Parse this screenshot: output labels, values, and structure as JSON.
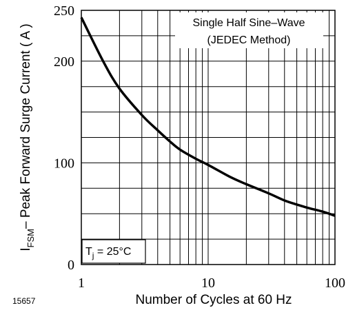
{
  "chart_data": {
    "type": "line",
    "xscale": "log",
    "xlim": [
      1,
      100
    ],
    "ylim": [
      0,
      250
    ],
    "grid": true,
    "x_ticks": [
      "1",
      "10",
      "100"
    ],
    "y_ticks": [
      "0",
      "100",
      "200",
      "250"
    ],
    "xlabel": "Number of Cycles at 60 Hz",
    "ylabel_main": "I",
    "ylabel_sub": "FSM",
    "ylabel_rest": "– Peak Forward Surge Current ( A )",
    "annotation_line1": "Single Half Sine–Wave",
    "annotation_line2": "(JEDEC Method)",
    "temp_label_main": "T",
    "temp_label_sub": "j",
    "temp_label_rest": " = 25°C",
    "figure_id": "15657",
    "series": [
      {
        "x": [
          1,
          1.5,
          2,
          3,
          4,
          5,
          6,
          8,
          10,
          15,
          20,
          30,
          40,
          50,
          60,
          80,
          100
        ],
        "y": [
          243,
          199,
          173,
          147,
          132,
          121,
          113,
          104,
          98,
          86,
          79,
          70,
          63,
          59,
          56,
          52,
          48
        ]
      }
    ]
  }
}
